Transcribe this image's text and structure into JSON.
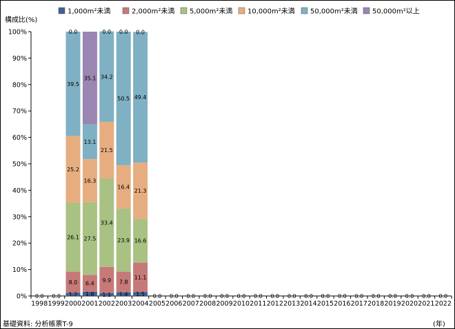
{
  "chart_data": {
    "type": "bar",
    "stacked": true,
    "ylabel": "構成比(%)",
    "xlabel_unit": "(年)",
    "source_note": "基礎資料: 分析帳票T-9",
    "y_ticks": [
      "0%",
      "10%",
      "20%",
      "30%",
      "40%",
      "50%",
      "60%",
      "70%",
      "80%",
      "90%",
      "100%"
    ],
    "ylim": [
      0,
      100
    ],
    "grid": false,
    "legend_position": "top",
    "categories": [
      "1998",
      "1999",
      "2000",
      "2001",
      "2002",
      "2003",
      "2004",
      "2005",
      "2006",
      "2007",
      "2008",
      "2009",
      "2010",
      "2011",
      "2012",
      "2013",
      "2014",
      "2015",
      "2016",
      "2017",
      "2018",
      "2019",
      "2020",
      "2021",
      "2022"
    ],
    "series": [
      {
        "name": "1,000m²未満",
        "color": "#3f5f94",
        "values": [
          0,
          0,
          1.2,
          1.6,
          1.1,
          1.4,
          1.5,
          0,
          0,
          0,
          0,
          0,
          0,
          0,
          0,
          0,
          0,
          0,
          0,
          0,
          0,
          0,
          0,
          0,
          0
        ]
      },
      {
        "name": "2,000m²未満",
        "color": "#c67a78",
        "values": [
          0,
          0,
          8.0,
          6.4,
          9.9,
          7.8,
          11.1,
          0,
          0,
          0,
          0,
          0,
          0,
          0,
          0,
          0,
          0,
          0,
          0,
          0,
          0,
          0,
          0,
          0,
          0
        ]
      },
      {
        "name": "5,000m²未満",
        "color": "#a9c183",
        "values": [
          0,
          0,
          26.1,
          27.5,
          33.4,
          23.9,
          16.6,
          0,
          0,
          0,
          0,
          0,
          0,
          0,
          0,
          0,
          0,
          0,
          0,
          0,
          0,
          0,
          0,
          0,
          0
        ]
      },
      {
        "name": "10,000m²未満",
        "color": "#e6ae80",
        "values": [
          0,
          0,
          25.2,
          16.3,
          21.5,
          16.4,
          21.3,
          0,
          0,
          0,
          0,
          0,
          0,
          0,
          0,
          0,
          0,
          0,
          0,
          0,
          0,
          0,
          0,
          0,
          0
        ]
      },
      {
        "name": "50,000m²未満",
        "color": "#7fb0c4",
        "values": [
          0,
          0,
          39.5,
          13.1,
          34.2,
          50.5,
          49.4,
          0,
          0,
          0,
          0,
          0,
          0,
          0,
          0,
          0,
          0,
          0,
          0,
          0,
          0,
          0,
          0,
          0,
          0
        ]
      },
      {
        "name": "50,000m²以上",
        "color": "#9b85b1",
        "values": [
          0,
          0,
          0.0,
          35.1,
          0.0,
          0.0,
          0.0,
          0,
          0,
          0,
          0,
          0,
          0,
          0,
          0,
          0,
          0,
          0,
          0,
          0,
          0,
          0,
          0,
          0,
          0
        ]
      }
    ],
    "label_series": [
      {
        "series": 0,
        "labels": [
          "0.0",
          "0.0",
          "1.2",
          "1.6",
          "1.1",
          "1.4",
          "1.5",
          "0.0",
          "0.0",
          "0.0",
          "0.0",
          "0.0",
          "0.0",
          "0.0",
          "0.0",
          "0.0",
          "0.0",
          "0.0",
          "0.0",
          "0.0",
          "0.0",
          "0.0",
          "0.0",
          "0.0",
          "0.0"
        ]
      },
      {
        "series": 1,
        "labels": [
          "",
          "",
          "8.0",
          "6.4",
          "9.9",
          "7.8",
          "11.1",
          "",
          "",
          "",
          "",
          "",
          "",
          "",
          "",
          "",
          "",
          "",
          "",
          "",
          "",
          "",
          "",
          "",
          ""
        ]
      },
      {
        "series": 2,
        "labels": [
          "",
          "",
          "26.1",
          "27.5",
          "33.4",
          "23.9",
          "16.6",
          "",
          "",
          "",
          "",
          "",
          "",
          "",
          "",
          "",
          "",
          "",
          "",
          "",
          "",
          "",
          "",
          "",
          ""
        ]
      },
      {
        "series": 3,
        "labels": [
          "",
          "",
          "25.2",
          "16.3",
          "21.5",
          "16.4",
          "21.3",
          "",
          "",
          "",
          "",
          "",
          "",
          "",
          "",
          "",
          "",
          "",
          "",
          "",
          "",
          "",
          "",
          "",
          ""
        ]
      },
      {
        "series": 4,
        "labels": [
          "",
          "",
          "39.5",
          "13.1",
          "34.2",
          "50.5",
          "49.4",
          "",
          "",
          "",
          "",
          "",
          "",
          "",
          "",
          "",
          "",
          "",
          "",
          "",
          "",
          "",
          "",
          "",
          ""
        ]
      },
      {
        "series": 5,
        "labels": [
          "",
          "",
          "0.0",
          "35.1",
          "0.0",
          "0.0",
          "0.0",
          "",
          "",
          "",
          "",
          "",
          "",
          "",
          "",
          "",
          "",
          "",
          "",
          "",
          "",
          "",
          "",
          "",
          ""
        ]
      }
    ]
  }
}
